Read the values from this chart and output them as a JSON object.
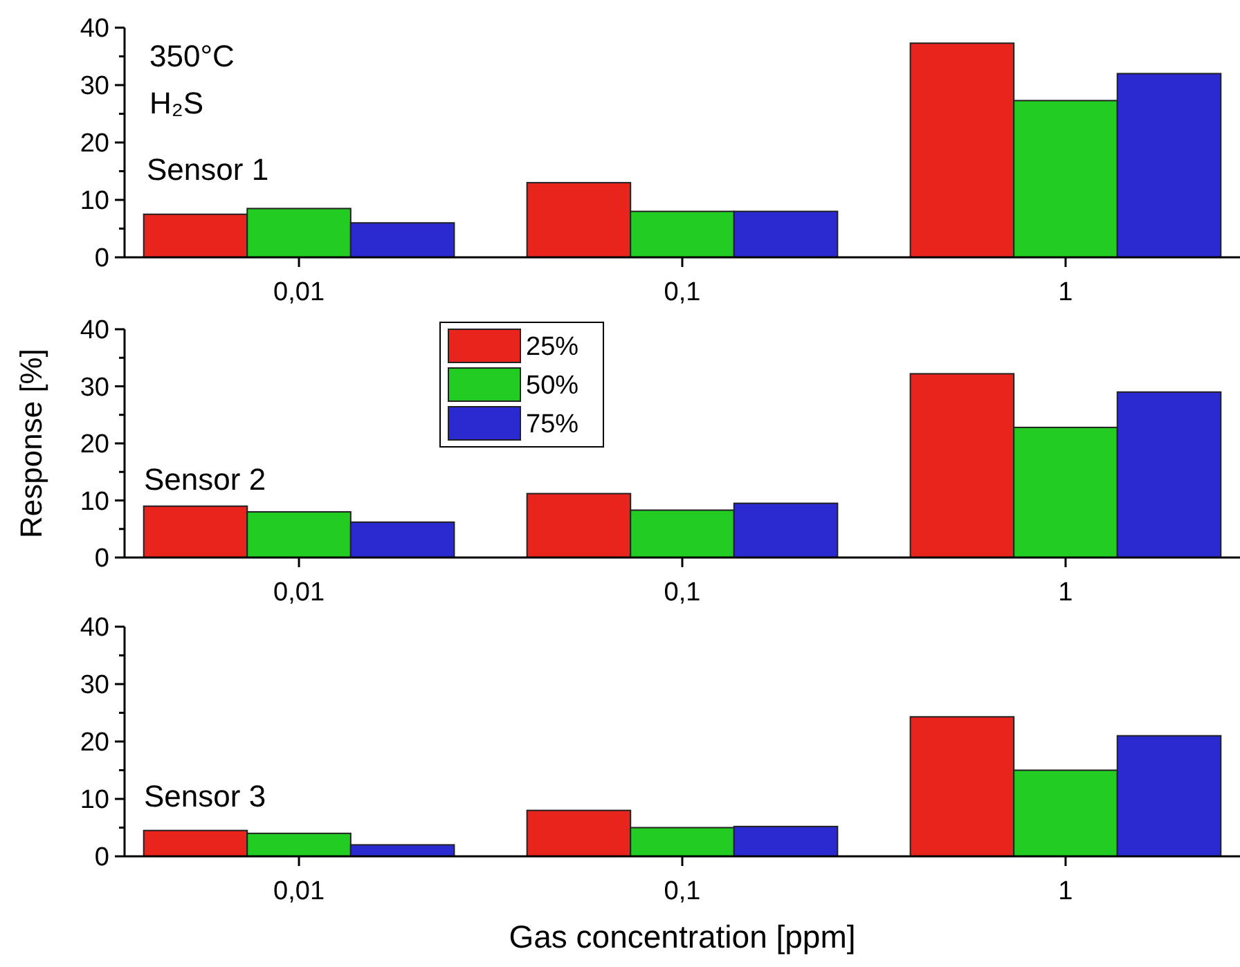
{
  "chart_data": [
    {
      "type": "bar",
      "annotations": [
        "350°C",
        "H₂S",
        "Sensor 1"
      ],
      "categories": [
        "0,01",
        "0,1",
        "1"
      ],
      "series": [
        {
          "color": "#e8241c",
          "values": [
            7.5,
            13,
            37.3
          ]
        },
        {
          "color": "#22cc22",
          "values": [
            8.5,
            8,
            27.3
          ]
        },
        {
          "color": "#2a2ad0",
          "values": [
            6,
            8,
            32
          ]
        }
      ],
      "ylim": [
        0,
        40
      ],
      "yticks": [
        0,
        {
          "value": 5,
          "label": null
        },
        10,
        {
          "value": 15,
          "label": null
        },
        20,
        {
          "value": 25,
          "label": null
        },
        30,
        {
          "value": 35,
          "label": null
        },
        40
      ],
      "legend": false
    },
    {
      "type": "bar",
      "ylabel": "Response [%]",
      "annotations": [
        "Sensor 2"
      ],
      "categories": [
        "0,01",
        "0,1",
        "1"
      ],
      "series": [
        {
          "name": "25%",
          "color": "#e8241c",
          "values": [
            9,
            11.2,
            32.2
          ]
        },
        {
          "name": "50%",
          "color": "#22cc22",
          "values": [
            8,
            8.3,
            22.8
          ]
        },
        {
          "name": "75%",
          "color": "#2a2ad0",
          "values": [
            6.2,
            9.5,
            29
          ]
        }
      ],
      "ylim": [
        0,
        40
      ],
      "yticks": [
        0,
        {
          "value": 5,
          "label": null
        },
        10,
        {
          "value": 15,
          "label": null
        },
        20,
        {
          "value": 25,
          "label": null
        },
        30,
        {
          "value": 35,
          "label": null
        },
        40
      ],
      "legend": "top left"
    },
    {
      "type": "bar",
      "xlabel": "Gas concentration [ppm]",
      "annotations": [
        "Sensor 3"
      ],
      "categories": [
        "0,01",
        "0,1",
        "1"
      ],
      "series": [
        {
          "color": "#e8241c",
          "values": [
            4.5,
            8,
            24.3
          ]
        },
        {
          "color": "#22cc22",
          "values": [
            4,
            5,
            15
          ]
        },
        {
          "color": "#2a2ad0",
          "values": [
            2,
            5.2,
            21
          ]
        }
      ],
      "ylim": [
        0,
        40
      ],
      "yticks": [
        0,
        {
          "value": 5,
          "label": null
        },
        10,
        {
          "value": 15,
          "label": null
        },
        20,
        {
          "value": 25,
          "label": null
        },
        30,
        {
          "value": 35,
          "label": null
        },
        40
      ],
      "legend": false
    }
  ]
}
